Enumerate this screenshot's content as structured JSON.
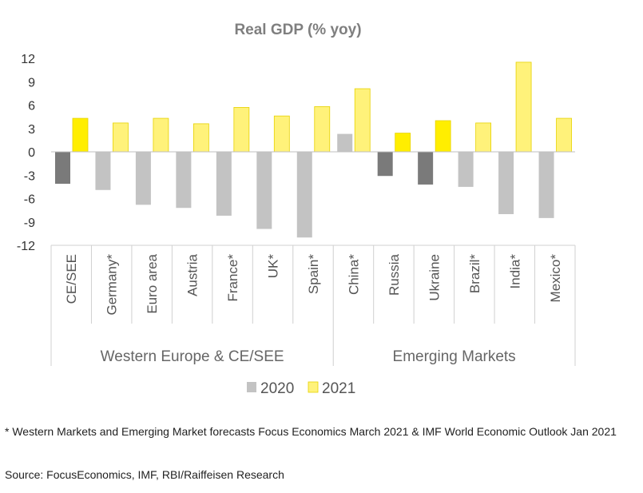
{
  "chart_data": {
    "type": "bar",
    "title": "Real GDP (% yoy)",
    "categories": [
      "CE/SEE",
      "Germany*",
      "Euro area",
      "Austria",
      "France*",
      "UK*",
      "Spain*",
      "China*",
      "Russia",
      "Ukraine",
      "Brazil*",
      "India*",
      "Mexico*"
    ],
    "groups": [
      {
        "name": "Western Europe & CE/SEE",
        "categories": [
          "CE/SEE",
          "Germany*",
          "Euro area",
          "Austria",
          "France*",
          "UK*",
          "Spain*"
        ]
      },
      {
        "name": "Emerging Markets",
        "categories": [
          "China*",
          "Russia",
          "Ukraine",
          "Brazil*",
          "India*",
          "Mexico*"
        ]
      }
    ],
    "series": [
      {
        "name": "2020",
        "values": [
          -4.1,
          -4.9,
          -6.8,
          -7.2,
          -8.2,
          -9.9,
          -11.0,
          2.3,
          -3.1,
          -4.2,
          -4.5,
          -8.0,
          -8.5
        ]
      },
      {
        "name": "2021",
        "values": [
          4.3,
          3.7,
          4.3,
          3.6,
          5.7,
          4.6,
          5.8,
          8.1,
          2.4,
          4.0,
          3.7,
          11.5,
          4.3
        ]
      }
    ],
    "highlighted": [
      "CE/SEE",
      "Russia",
      "Ukraine"
    ],
    "colors": {
      "2020": "#c3c3c3",
      "2020_highlight": "#7a7a7a",
      "2021": "#fff27a",
      "2021_highlight": "#ffee00"
    },
    "yticks": [
      12,
      9,
      6,
      3,
      0,
      -3,
      -6,
      -9,
      -12
    ],
    "ylim": [
      -12,
      12
    ],
    "legend_position": "bottom",
    "grid": false
  },
  "notes": {
    "footnote": "* Western Markets and Emerging Market forecasts Focus Economics March 2021 & IMF World Economic Outlook Jan 2021",
    "source": "Source: FocusEconomics, IMF, RBI/Raiffeisen Research"
  }
}
